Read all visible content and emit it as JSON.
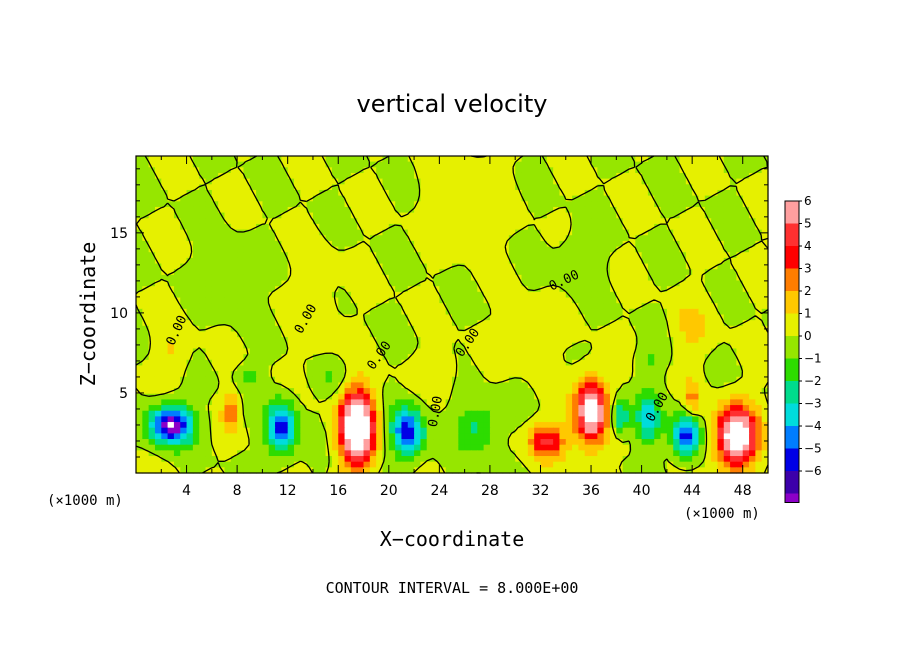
{
  "chart_data": {
    "type": "heatmap",
    "title": "vertical velocity",
    "xlabel": "X−coordinate",
    "ylabel": "Z−coordinate",
    "x_unit_label": "(×1000 m)",
    "xlim": [
      0,
      50
    ],
    "ylim": [
      0,
      19.8
    ],
    "x_ticks": [
      4,
      8,
      12,
      16,
      20,
      24,
      28,
      32,
      36,
      40,
      44,
      48
    ],
    "x_tick_labels": [
      "4",
      "8",
      "12",
      "16",
      "20",
      "24",
      "28",
      "32",
      "36",
      "40",
      "44",
      "48"
    ],
    "y_ticks": [
      5,
      10,
      15
    ],
    "y_tick_labels": [
      "5",
      "10",
      "15"
    ],
    "colorbar": {
      "ticks": [
        6,
        5,
        4,
        3,
        2,
        1,
        0,
        -1,
        -2,
        -3,
        -4,
        -5,
        -6
      ],
      "tick_labels": [
        "6",
        "5",
        "4",
        "3",
        "2",
        "1",
        "0",
        "−1",
        "−2",
        "−3",
        "−4",
        "−5",
        "−6"
      ],
      "colors": [
        "#ff9f9f",
        "#ff3030",
        "#ff0000",
        "#ff7d00",
        "#ffc800",
        "#e6f000",
        "#96e600",
        "#2ddc00",
        "#00dc8c",
        "#00dcdc",
        "#007dff",
        "#0000e6",
        "#3c00aa",
        "#8c00c8",
        "#ffffff"
      ]
    },
    "contour_interval_label": "CONTOUR INTERVAL = 8.000E+00",
    "contour_labels": [
      "0.00",
      "0.00",
      "0.00",
      "0.00",
      "0.00",
      "0.00",
      "0.00"
    ],
    "features": [
      {
        "x": 2.8,
        "z": 3.0,
        "w": -7,
        "sx": 1.7,
        "sz": 1.2
      },
      {
        "x": 7.5,
        "z": 3.8,
        "w": 3,
        "sx": 0.6,
        "sz": 1.2
      },
      {
        "x": 11.5,
        "z": 2.8,
        "w": -6,
        "sx": 1.1,
        "sz": 1.6
      },
      {
        "x": 17.5,
        "z": 2.8,
        "w": 10,
        "sx": 1.3,
        "sz": 2.2
      },
      {
        "x": 21.5,
        "z": 2.5,
        "w": -6,
        "sx": 1.2,
        "sz": 1.5
      },
      {
        "x": 27.0,
        "z": 2.8,
        "w": -2.5,
        "sx": 1.5,
        "sz": 1.5
      },
      {
        "x": 32.5,
        "z": 2.0,
        "w": 4.5,
        "sx": 1.4,
        "sz": 1.1
      },
      {
        "x": 36.0,
        "z": 3.8,
        "w": 8,
        "sx": 1.2,
        "sz": 2.0
      },
      {
        "x": 38.3,
        "z": 3.5,
        "w": -4,
        "sx": 0.7,
        "sz": 1.0
      },
      {
        "x": 40.5,
        "z": 3.3,
        "w": -4,
        "sx": 0.9,
        "sz": 1.5
      },
      {
        "x": 43.5,
        "z": 2.3,
        "w": -6,
        "sx": 1.0,
        "sz": 1.3
      },
      {
        "x": 47.5,
        "z": 2.3,
        "w": 9,
        "sx": 1.5,
        "sz": 1.8
      },
      {
        "x": 44.0,
        "z": 4.6,
        "w": 2.5,
        "sx": 0.6,
        "sz": 1.2
      },
      {
        "x": 3.0,
        "z": 7.5,
        "w": 1.2,
        "sx": 1.2,
        "sz": 1.5
      },
      {
        "x": 14.5,
        "z": 10.0,
        "w": 0.8,
        "sx": 1.5,
        "sz": 3.0
      },
      {
        "x": 24.0,
        "z": 6.5,
        "w": 1.0,
        "sx": 1.5,
        "sz": 1.2
      },
      {
        "x": 31.0,
        "z": 8.5,
        "w": 1.2,
        "sx": 1.5,
        "sz": 1.5
      },
      {
        "x": 44.0,
        "z": 9.0,
        "w": 1.3,
        "sx": 1.5,
        "sz": 1.7
      },
      {
        "x": 7.0,
        "z": 12.0,
        "w": -0.6,
        "sx": 2.0,
        "sz": 2.0
      },
      {
        "x": 9.0,
        "z": 6.0,
        "w": -1.4,
        "sx": 1.0,
        "sz": 0.8
      },
      {
        "x": 15.5,
        "z": 6.0,
        "w": -1.0,
        "sx": 1.3,
        "sz": 1.0
      },
      {
        "x": 35.0,
        "z": 13.5,
        "w": -0.7,
        "sx": 1.6,
        "sz": 1.6
      },
      {
        "x": 40.5,
        "z": 7.0,
        "w": -1.3,
        "sx": 1.0,
        "sz": 0.9
      },
      {
        "x": 26.0,
        "z": 17.0,
        "w": 0.9,
        "sx": 2.5,
        "sz": 2.2
      }
    ]
  }
}
